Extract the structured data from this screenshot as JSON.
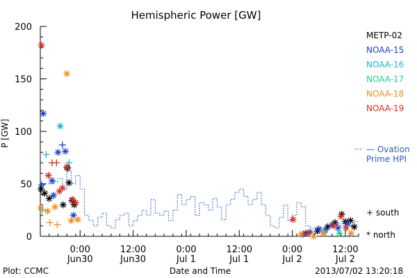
{
  "colors": {
    "axis": "#000000",
    "ovation": "#2a5db0"
  },
  "chart_data": {
    "type": "scatter",
    "title": "Hemispheric Power [GW]",
    "ylabel": "P [GW]",
    "xlabel": "Date and Time",
    "ylim": [
      0,
      200
    ],
    "xlim": [
      "2013-06-29 15:00",
      "2013-07-02 15:00"
    ],
    "yticks": [
      "0",
      "50",
      "100",
      "150",
      "200"
    ],
    "xticks": [
      {
        "x": "2013-06-30 00:00",
        "label": "0:00",
        "sublabel": "Jun30"
      },
      {
        "x": "2013-06-30 12:00",
        "label": "12:00",
        "sublabel": "Jun30"
      },
      {
        "x": "2013-07-01 00:00",
        "label": "0:00",
        "sublabel": "Jul 1"
      },
      {
        "x": "2013-07-01 12:00",
        "label": "12:00",
        "sublabel": "Jul 1"
      },
      {
        "x": "2013-07-02 00:00",
        "label": "0:00",
        "sublabel": "Jul 2"
      },
      {
        "x": "2013-07-02 12:00",
        "label": "12:00",
        "sublabel": "Jul 2"
      }
    ],
    "series": [
      {
        "name": "METP-02",
        "color": "#000000",
        "points": [
          {
            "t": "2013-06-29 15:10",
            "v": 45,
            "m": "north"
          },
          {
            "t": "2013-06-29 16:00",
            "v": 41,
            "m": "north"
          },
          {
            "t": "2013-06-29 17:00",
            "v": 36,
            "m": "north"
          },
          {
            "t": "2013-06-29 20:10",
            "v": 30,
            "m": "north"
          },
          {
            "t": "2013-06-29 21:10",
            "v": 65,
            "m": "north"
          },
          {
            "t": "2013-06-29 21:30",
            "v": 51,
            "m": "north"
          },
          {
            "t": "2013-06-29 22:10",
            "v": 34,
            "m": "north"
          },
          {
            "t": "2013-06-29 22:40",
            "v": 30,
            "m": "north"
          },
          {
            "t": "2013-07-02 03:00",
            "v": 3,
            "m": "north"
          },
          {
            "t": "2013-07-02 05:40",
            "v": 5,
            "m": "north"
          },
          {
            "t": "2013-07-02 08:00",
            "v": 9,
            "m": "north"
          },
          {
            "t": "2013-07-02 09:40",
            "v": 13,
            "m": "north"
          },
          {
            "t": "2013-07-02 11:10",
            "v": 21,
            "m": "north"
          },
          {
            "t": "2013-07-02 12:00",
            "v": 14,
            "m": "north"
          },
          {
            "t": "2013-07-02 13:10",
            "v": 15,
            "m": "north"
          },
          {
            "t": "2013-07-02 14:00",
            "v": 9,
            "m": "north"
          }
        ]
      },
      {
        "name": "NOAA-15",
        "color": "#1f3cc8",
        "points": [
          {
            "t": "2013-06-29 15:20",
            "v": 49,
            "m": "south"
          },
          {
            "t": "2013-06-29 15:40",
            "v": 117,
            "m": "north"
          },
          {
            "t": "2013-06-29 17:40",
            "v": 53,
            "m": "north"
          },
          {
            "t": "2013-06-29 18:00",
            "v": 39,
            "m": "north"
          },
          {
            "t": "2013-06-29 19:00",
            "v": 80,
            "m": "north"
          },
          {
            "t": "2013-06-29 20:00",
            "v": 87,
            "m": "south"
          },
          {
            "t": "2013-06-29 20:40",
            "v": 81,
            "m": "north"
          },
          {
            "t": "2013-06-29 22:30",
            "v": 20,
            "m": "north"
          },
          {
            "t": "2013-07-02 02:30",
            "v": 2,
            "m": "north"
          },
          {
            "t": "2013-07-02 04:00",
            "v": 4,
            "m": "north"
          },
          {
            "t": "2013-07-02 06:00",
            "v": 7,
            "m": "north"
          },
          {
            "t": "2013-07-02 07:30",
            "v": 6,
            "m": "north"
          },
          {
            "t": "2013-07-02 09:00",
            "v": 11,
            "m": "north"
          },
          {
            "t": "2013-07-02 10:20",
            "v": 8,
            "m": "north"
          },
          {
            "t": "2013-07-02 12:30",
            "v": 12,
            "m": "north"
          }
        ]
      },
      {
        "name": "NOAA-16",
        "color": "#19b4d7",
        "points": [
          {
            "t": "2013-06-29 15:30",
            "v": 25,
            "m": "south"
          },
          {
            "t": "2013-06-29 16:20",
            "v": 78,
            "m": "south"
          },
          {
            "t": "2013-06-29 19:30",
            "v": 105,
            "m": "north"
          },
          {
            "t": "2013-06-29 21:30",
            "v": 70,
            "m": "south"
          },
          {
            "t": "2013-07-02 07:10",
            "v": 4,
            "m": "north"
          }
        ]
      },
      {
        "name": "NOAA-17",
        "color": "#1fd28c",
        "points": [
          {
            "t": "2013-07-02 10:40",
            "v": 3,
            "m": "north"
          }
        ]
      },
      {
        "name": "NOAA-18",
        "color": "#f08c1e",
        "points": [
          {
            "t": "2013-06-29 15:05",
            "v": 27,
            "m": "north"
          },
          {
            "t": "2013-06-29 16:40",
            "v": 24,
            "m": "north"
          },
          {
            "t": "2013-06-29 17:10",
            "v": 13,
            "m": "south"
          },
          {
            "t": "2013-06-29 18:20",
            "v": 28,
            "m": "north"
          },
          {
            "t": "2013-06-29 18:50",
            "v": 11,
            "m": "south"
          },
          {
            "t": "2013-06-29 21:00",
            "v": 155,
            "m": "north"
          },
          {
            "t": "2013-06-29 22:00",
            "v": 15,
            "m": "north"
          },
          {
            "t": "2013-06-29 23:30",
            "v": 16,
            "m": "north"
          },
          {
            "t": "2013-07-02 02:00",
            "v": 2,
            "m": "north"
          },
          {
            "t": "2013-07-02 04:50",
            "v": 0,
            "m": "north"
          },
          {
            "t": "2013-07-02 07:00",
            "v": 3,
            "m": "north"
          },
          {
            "t": "2013-07-02 13:20",
            "v": 3,
            "m": "north"
          }
        ]
      },
      {
        "name": "NOAA-19",
        "color": "#d22d1e",
        "points": [
          {
            "t": "2013-06-29 15:15",
            "v": 182,
            "m": "north"
          },
          {
            "t": "2013-06-29 16:50",
            "v": 58,
            "m": "north"
          },
          {
            "t": "2013-06-29 17:40",
            "v": 70,
            "m": "south"
          },
          {
            "t": "2013-06-29 18:40",
            "v": 70,
            "m": "south"
          },
          {
            "t": "2013-06-29 19:20",
            "v": 43,
            "m": "north"
          },
          {
            "t": "2013-06-29 20:00",
            "v": 46,
            "m": "north"
          },
          {
            "t": "2013-06-29 21:00",
            "v": 66,
            "m": "north"
          },
          {
            "t": "2013-06-29 22:20",
            "v": 35,
            "m": "north"
          },
          {
            "t": "2013-06-29 23:00",
            "v": 32,
            "m": "north"
          },
          {
            "t": "2013-07-02 00:10",
            "v": 16,
            "m": "north"
          },
          {
            "t": "2013-07-02 03:30",
            "v": 3,
            "m": "north"
          },
          {
            "t": "2013-07-02 09:20",
            "v": 10,
            "m": "north"
          },
          {
            "t": "2013-07-02 11:00",
            "v": 19,
            "m": "north"
          },
          {
            "t": "2013-07-02 12:10",
            "v": 8,
            "m": "north"
          }
        ]
      }
    ],
    "ovation": {
      "label_line1": "— Ovation",
      "label_line2": "Prime HPI",
      "x": [
        "2013-06-29 15:00",
        "2013-06-29 16:00",
        "2013-06-29 17:00",
        "2013-06-29 18:00",
        "2013-06-29 19:00",
        "2013-06-29 20:00",
        "2013-06-29 21:00",
        "2013-06-29 22:00",
        "2013-06-29 23:00",
        "2013-06-30 00:00",
        "2013-06-30 01:00",
        "2013-06-30 02:00",
        "2013-06-30 03:00",
        "2013-06-30 04:00",
        "2013-06-30 05:00",
        "2013-06-30 06:00",
        "2013-06-30 07:00",
        "2013-06-30 08:00",
        "2013-06-30 09:00",
        "2013-06-30 10:00",
        "2013-06-30 11:00",
        "2013-06-30 12:00",
        "2013-06-30 13:00",
        "2013-06-30 14:00",
        "2013-06-30 15:00",
        "2013-06-30 16:00",
        "2013-06-30 17:00",
        "2013-06-30 18:00",
        "2013-06-30 19:00",
        "2013-06-30 20:00",
        "2013-06-30 21:00",
        "2013-06-30 22:00",
        "2013-06-30 23:00",
        "2013-07-01 00:00",
        "2013-07-01 01:00",
        "2013-07-01 02:00",
        "2013-07-01 03:00",
        "2013-07-01 04:00",
        "2013-07-01 05:00",
        "2013-07-01 06:00",
        "2013-07-01 07:00",
        "2013-07-01 08:00",
        "2013-07-01 09:00",
        "2013-07-01 10:00",
        "2013-07-01 11:00",
        "2013-07-01 12:00",
        "2013-07-01 13:00",
        "2013-07-01 14:00",
        "2013-07-01 15:00",
        "2013-07-01 16:00",
        "2013-07-01 17:00",
        "2013-07-01 18:00",
        "2013-07-01 19:00",
        "2013-07-01 20:00",
        "2013-07-01 21:00",
        "2013-07-01 22:00",
        "2013-07-01 23:00",
        "2013-07-02 00:00",
        "2013-07-02 01:00",
        "2013-07-02 02:00",
        "2013-07-02 03:00",
        "2013-07-02 04:00",
        "2013-07-02 05:00",
        "2013-07-02 06:00",
        "2013-07-02 07:00",
        "2013-07-02 08:00",
        "2013-07-02 09:00",
        "2013-07-02 10:00",
        "2013-07-02 11:00",
        "2013-07-02 12:00",
        "2013-07-02 13:00",
        "2013-07-02 14:00"
      ],
      "y": [
        48,
        50,
        50,
        52,
        55,
        45,
        62,
        50,
        58,
        45,
        20,
        15,
        10,
        18,
        22,
        10,
        8,
        16,
        20,
        22,
        10,
        15,
        20,
        25,
        20,
        35,
        22,
        20,
        24,
        15,
        25,
        40,
        30,
        35,
        38,
        20,
        32,
        30,
        25,
        36,
        28,
        16,
        30,
        35,
        42,
        45,
        38,
        30,
        35,
        42,
        30,
        20,
        10,
        8,
        18,
        30,
        15,
        20,
        32,
        28,
        10,
        8,
        8,
        8,
        8,
        10,
        10,
        12,
        10,
        12,
        10,
        14
      ]
    },
    "legend_marker_note": {
      "south": "+ south",
      "north": "* north"
    }
  },
  "footer": {
    "left": "Plot: CCMC",
    "right": "2013/07/02 13:20:18"
  }
}
